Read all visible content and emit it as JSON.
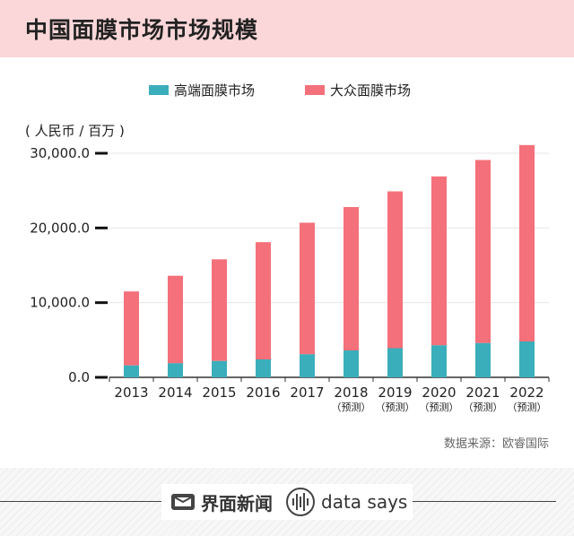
{
  "header": {
    "title": "中国面膜市场市场规模"
  },
  "legend": [
    {
      "label": "高端面膜市场",
      "color": "#3aaebb"
    },
    {
      "label": "大众面膜市场",
      "color": "#f4707a"
    }
  ],
  "unit_label": "( 人民币 / 百万 )",
  "chart_data": {
    "type": "bar",
    "stacked": true,
    "title": "中国面膜市场市场规模",
    "xlabel": "",
    "ylabel": "( 人民币 / 百万 )",
    "categories": [
      "2013",
      "2014",
      "2015",
      "2016",
      "2017",
      "2018",
      "2019",
      "2020",
      "2021",
      "2022"
    ],
    "category_notes": [
      "",
      "",
      "",
      "",
      "",
      "（预测）",
      "（预测）",
      "（预测）",
      "（预测）",
      "（预测）"
    ],
    "series": [
      {
        "name": "高端面膜市场",
        "color": "#3aaebb",
        "values": [
          1600,
          1900,
          2200,
          2400,
          3100,
          3600,
          3900,
          4300,
          4600,
          4800
        ]
      },
      {
        "name": "大众面膜市场",
        "color": "#f4707a",
        "values": [
          9900,
          11700,
          13600,
          15700,
          17600,
          19200,
          21000,
          22600,
          24500,
          26300
        ]
      }
    ],
    "ylim": [
      0,
      31000
    ],
    "yticks": [
      0,
      10000,
      20000,
      30000
    ],
    "ytick_labels": [
      "0.0",
      "10,000.0",
      "20,000.0",
      "30,000.0"
    ],
    "grid": true,
    "legend": "top"
  },
  "source": "数据来源：欧睿国际",
  "footer": {
    "brand_cn": "界面新闻",
    "brand_en": "data says"
  }
}
